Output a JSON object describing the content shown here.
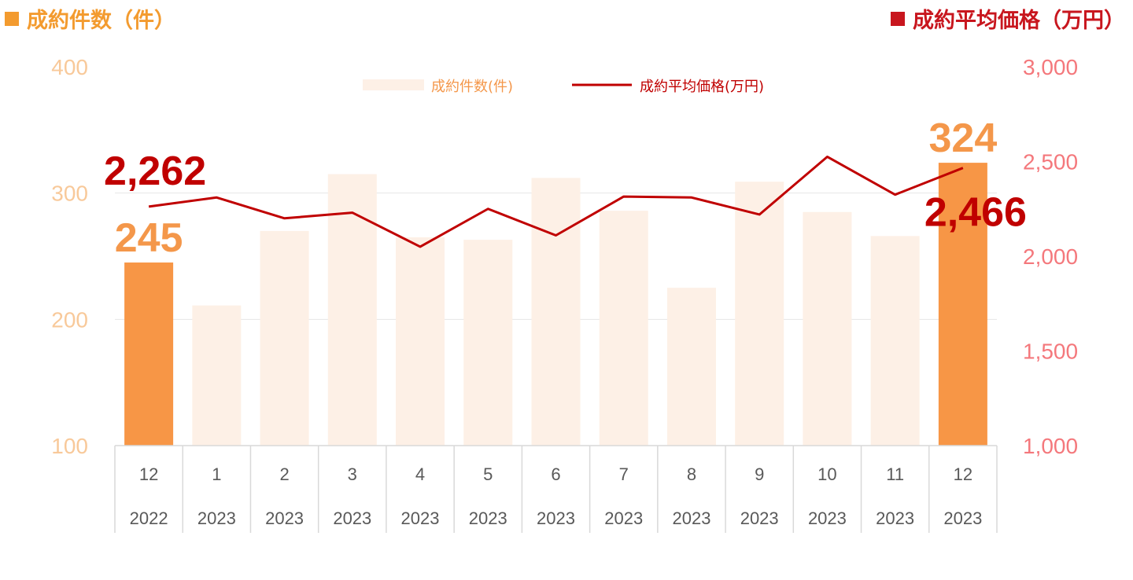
{
  "header": {
    "left_title": "成約件数（件）",
    "right_title": "成約平均価格（万円）"
  },
  "chart_data": {
    "type": "bar+line",
    "categories": [
      [
        "12",
        "2022"
      ],
      [
        "1",
        "2023"
      ],
      [
        "2",
        "2023"
      ],
      [
        "3",
        "2023"
      ],
      [
        "4",
        "2023"
      ],
      [
        "5",
        "2023"
      ],
      [
        "6",
        "2023"
      ],
      [
        "7",
        "2023"
      ],
      [
        "8",
        "2023"
      ],
      [
        "9",
        "2023"
      ],
      [
        "10",
        "2023"
      ],
      [
        "11",
        "2023"
      ],
      [
        "12",
        "2023"
      ]
    ],
    "series": [
      {
        "name": "成約件数(件)",
        "type": "bar",
        "axis": "left",
        "values": [
          245,
          211,
          270,
          315,
          265,
          263,
          312,
          286,
          225,
          309,
          285,
          266,
          324
        ],
        "highlight_indices": [
          0,
          12
        ],
        "color": "#f79646",
        "faded_color": "#fdf0e6"
      },
      {
        "name": "成約平均価格(万円)",
        "type": "line",
        "axis": "right",
        "values": [
          2262,
          2310,
          2200,
          2230,
          2050,
          2250,
          2110,
          2315,
          2310,
          2220,
          2525,
          2325,
          2466
        ],
        "color": "#c00000"
      }
    ],
    "y_left": {
      "range": [
        100,
        400
      ],
      "ticks": [
        100,
        200,
        300,
        400
      ],
      "tick_labels": [
        "100",
        "200",
        "300",
        "400"
      ]
    },
    "y_right": {
      "range": [
        1000,
        3000
      ],
      "ticks": [
        1000,
        1500,
        2000,
        2500,
        3000
      ],
      "tick_labels": [
        "1,000",
        "1,500",
        "2,000",
        "2,500",
        "3,000"
      ]
    },
    "data_labels": [
      {
        "series": 0,
        "index": 0,
        "text": "245"
      },
      {
        "series": 0,
        "index": 12,
        "text": "324"
      },
      {
        "series": 1,
        "index": 0,
        "text": "2,262"
      },
      {
        "series": 1,
        "index": 12,
        "text": "2,466"
      }
    ],
    "legend": {
      "position": "top-center",
      "labels": [
        "成約件数(件)",
        "成約平均価格(万円)"
      ]
    },
    "gridlines": true
  },
  "colors": {
    "left_accent": "#f39b2f",
    "right_accent": "#c8161e",
    "left_ticks": "#f8c99a",
    "right_ticks": "#f4787c",
    "grid": "#e6e6e6"
  }
}
